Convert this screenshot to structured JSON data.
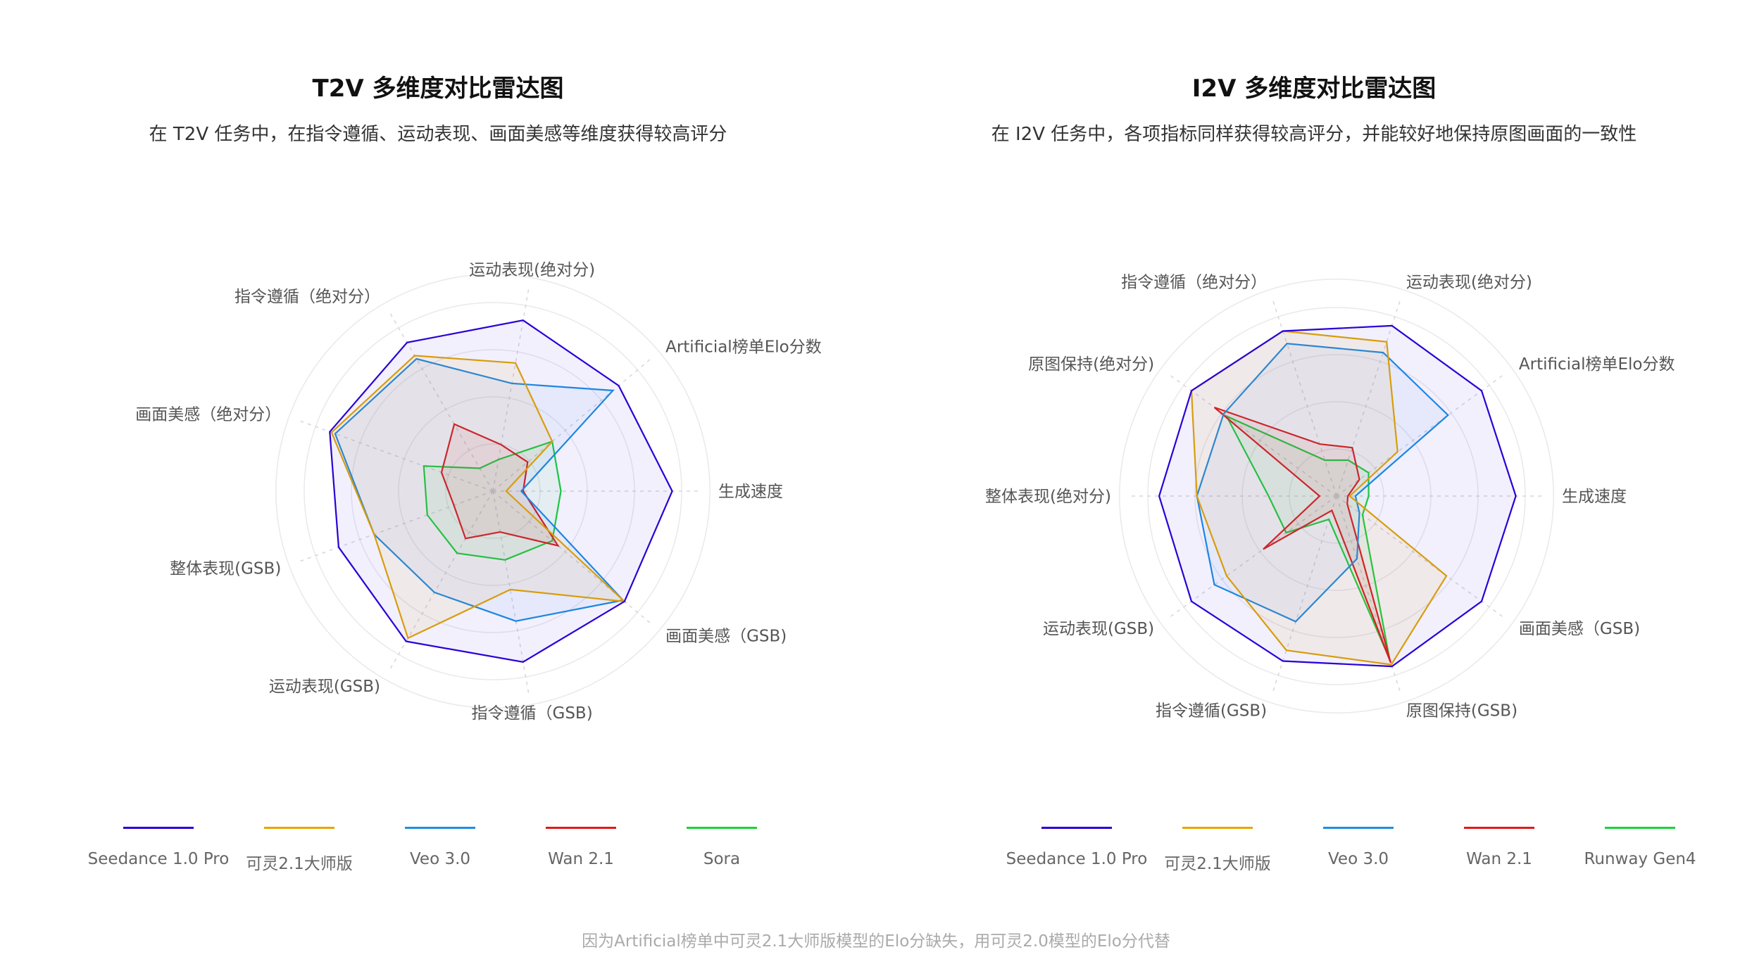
{
  "legend_colors": {
    "Seedance 1.0 Pro": "#2a00d6",
    "可灵2.1大师版": "#e3a700",
    "Veo 3.0": "#1e8fe3",
    "Wan 2.1": "#e01a1a",
    "Sora": "#19d43a",
    "Runway Gen4": "#19d43a"
  },
  "chart_data": [
    {
      "type": "radar",
      "title": "T2V 多维度对比雷达图",
      "subtitle": "在 T2V 任务中，在指令遵循、运动表现、画面美感等维度获得较高评分",
      "axes": [
        "生成速度",
        "Artificial榜单Elo分数",
        "运动表现(绝对分)",
        "指令遵循（绝对分）",
        "画面美感（绝对分）",
        "整体表现(GSB)",
        "运动表现(GSB)",
        "指令遵循（GSB)",
        "画面美感（GSB)"
      ],
      "range": [
        0,
        1
      ],
      "grid_rings": 4,
      "series": [
        {
          "name": "Seedance 1.0 Pro",
          "values": [
            0.95,
            0.87,
            0.92,
            0.91,
            0.92,
            0.87,
            0.92,
            0.92,
            0.91
          ]
        },
        {
          "name": "可灵2.1大师版",
          "values": [
            0.07,
            0.41,
            0.69,
            0.83,
            0.91,
            0.67,
            0.9,
            0.53,
            0.91
          ]
        },
        {
          "name": "Veo 3.0",
          "values": [
            0.15,
            0.83,
            0.58,
            0.81,
            0.89,
            0.67,
            0.62,
            0.7,
            0.9
          ]
        },
        {
          "name": "Wan 2.1",
          "values": [
            0.16,
            0.24,
            0.25,
            0.41,
            0.29,
            0.22,
            0.29,
            0.22,
            0.45
          ]
        },
        {
          "name": "Sora",
          "values": [
            0.36,
            0.41,
            0.17,
            0.14,
            0.39,
            0.37,
            0.38,
            0.37,
            0.41
          ]
        }
      ],
      "legend": [
        "Seedance 1.0 Pro",
        "可灵2.1大师版",
        "Veo 3.0",
        "Wan 2.1",
        "Sora"
      ]
    },
    {
      "type": "radar",
      "title": "I2V 多维度对比雷达图",
      "subtitle": "在 I2V 任务中，各项指标同样获得较高评分，并能较好地保持原图画面的一致性",
      "axes": [
        "生成速度",
        "Artificial榜单Elo分数",
        "运动表现(绝对分)",
        "指令遵循（绝对分）",
        "原图保持(绝对分)",
        "整体表现(绝对分)",
        "运动表现(GSB)",
        "指令遵循(GSB)",
        "原图保持(GSB)",
        "画面美感（GSB)"
      ],
      "range": [
        0,
        1
      ],
      "grid_rings": 4,
      "series": [
        {
          "name": "Seedance 1.0 Pro",
          "values": [
            0.95,
            0.95,
            0.95,
            0.92,
            0.95,
            0.94,
            0.95,
            0.92,
            0.95,
            0.95
          ]
        },
        {
          "name": "可灵2.1大师版",
          "values": [
            0.07,
            0.4,
            0.86,
            0.92,
            0.95,
            0.74,
            0.72,
            0.86,
            0.94,
            0.72
          ]
        },
        {
          "name": "Veo 3.0",
          "values": [
            0.1,
            0.73,
            0.8,
            0.85,
            0.74,
            0.74,
            0.8,
            0.7,
            0.35,
            0.15
          ]
        },
        {
          "name": "Wan 2.1",
          "values": [
            0.06,
            0.15,
            0.27,
            0.29,
            0.8,
            0.09,
            0.48,
            0.08,
            0.93,
            0.07
          ]
        },
        {
          "name": "Runway Gen4",
          "values": [
            0.17,
            0.21,
            0.2,
            0.2,
            0.72,
            0.36,
            0.33,
            0.13,
            0.91,
            0.17
          ]
        }
      ],
      "legend": [
        "Seedance 1.0 Pro",
        "可灵2.1大师版",
        "Veo 3.0",
        "Wan 2.1",
        "Runway Gen4"
      ]
    }
  ],
  "footnote": "因为Artificial榜单中可灵2.1大师版模型的Elo分缺失，用可灵2.0模型的Elo分代替"
}
